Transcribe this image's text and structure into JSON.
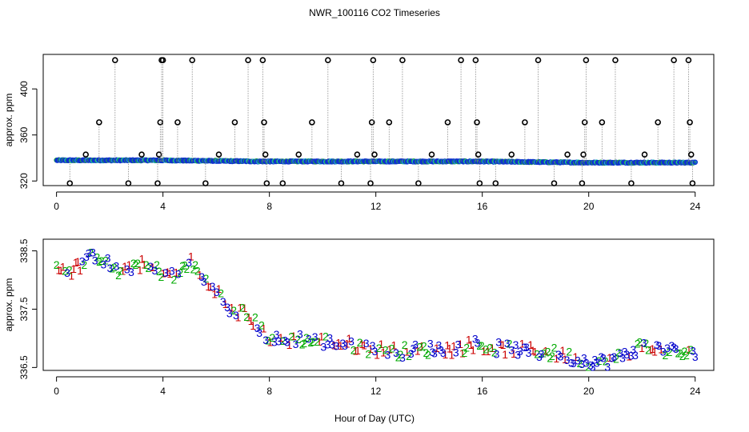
{
  "figure": {
    "title": "NWR_100116  CO2 Timeseries",
    "xlabel": "Hour of Day (UTC)"
  },
  "chart_data": [
    {
      "type": "scatter",
      "name": "top-panel",
      "ylabel": "approx. ppm",
      "xlim": [
        -0.5,
        24.7
      ],
      "ylim": [
        316,
        430
      ],
      "xticks": [
        0,
        4,
        8,
        12,
        16,
        20,
        24
      ],
      "yticks": [
        320,
        360,
        400
      ],
      "baseline_segments": [
        {
          "from": 0.0,
          "to": 3.9,
          "start": 338,
          "end": 338
        },
        {
          "from": 3.9,
          "to": 7.8,
          "start": 338,
          "end": 337
        },
        {
          "from": 7.8,
          "to": 11.9,
          "start": 337,
          "end": 337
        },
        {
          "from": 11.9,
          "to": 15.9,
          "start": 337,
          "end": 337
        },
        {
          "from": 15.9,
          "to": 19.9,
          "start": 337,
          "end": 336
        },
        {
          "from": 19.9,
          "to": 24.0,
          "start": 336,
          "end": 336
        }
      ],
      "flagged_points": [
        {
          "x": 0.5,
          "y": 318
        },
        {
          "x": 1.1,
          "y": 343
        },
        {
          "x": 1.6,
          "y": 371
        },
        {
          "x": 2.2,
          "y": 425
        },
        {
          "x": 2.7,
          "y": 318
        },
        {
          "x": 3.2,
          "y": 343
        },
        {
          "x": 3.8,
          "y": 318
        },
        {
          "x": 3.85,
          "y": 343
        },
        {
          "x": 3.9,
          "y": 371
        },
        {
          "x": 3.95,
          "y": 425
        },
        {
          "x": 4.0,
          "y": 425
        },
        {
          "x": 4.55,
          "y": 371
        },
        {
          "x": 5.1,
          "y": 425
        },
        {
          "x": 5.6,
          "y": 318
        },
        {
          "x": 6.1,
          "y": 343
        },
        {
          "x": 6.7,
          "y": 371
        },
        {
          "x": 7.2,
          "y": 425
        },
        {
          "x": 7.75,
          "y": 425
        },
        {
          "x": 7.8,
          "y": 371
        },
        {
          "x": 7.85,
          "y": 343
        },
        {
          "x": 7.9,
          "y": 318
        },
        {
          "x": 8.5,
          "y": 318
        },
        {
          "x": 9.1,
          "y": 343
        },
        {
          "x": 9.6,
          "y": 371
        },
        {
          "x": 10.2,
          "y": 425
        },
        {
          "x": 10.7,
          "y": 318
        },
        {
          "x": 11.3,
          "y": 343
        },
        {
          "x": 11.8,
          "y": 318
        },
        {
          "x": 11.85,
          "y": 371
        },
        {
          "x": 11.9,
          "y": 425
        },
        {
          "x": 11.95,
          "y": 343
        },
        {
          "x": 12.5,
          "y": 371
        },
        {
          "x": 13.0,
          "y": 425
        },
        {
          "x": 13.6,
          "y": 318
        },
        {
          "x": 14.1,
          "y": 343
        },
        {
          "x": 14.7,
          "y": 371
        },
        {
          "x": 15.2,
          "y": 425
        },
        {
          "x": 15.75,
          "y": 425
        },
        {
          "x": 15.8,
          "y": 371
        },
        {
          "x": 15.85,
          "y": 343
        },
        {
          "x": 15.9,
          "y": 318
        },
        {
          "x": 16.5,
          "y": 318
        },
        {
          "x": 17.1,
          "y": 343
        },
        {
          "x": 17.6,
          "y": 371
        },
        {
          "x": 18.1,
          "y": 425
        },
        {
          "x": 18.7,
          "y": 318
        },
        {
          "x": 19.2,
          "y": 343
        },
        {
          "x": 19.75,
          "y": 318
        },
        {
          "x": 19.8,
          "y": 343
        },
        {
          "x": 19.85,
          "y": 371
        },
        {
          "x": 19.9,
          "y": 425
        },
        {
          "x": 20.5,
          "y": 371
        },
        {
          "x": 21.0,
          "y": 425
        },
        {
          "x": 21.6,
          "y": 318
        },
        {
          "x": 22.1,
          "y": 343
        },
        {
          "x": 22.6,
          "y": 371
        },
        {
          "x": 23.2,
          "y": 425
        },
        {
          "x": 23.75,
          "y": 425
        },
        {
          "x": 23.8,
          "y": 371
        },
        {
          "x": 23.85,
          "y": 343
        },
        {
          "x": 23.9,
          "y": 318
        }
      ]
    },
    {
      "type": "scatter",
      "name": "bottom-panel",
      "ylabel": "approx. ppm",
      "xlim": [
        -0.5,
        24.7
      ],
      "ylim": [
        336.45,
        338.7
      ],
      "xticks": [
        0,
        4,
        8,
        12,
        16,
        20,
        24
      ],
      "yticks": [
        336.5,
        337.5,
        338.5
      ],
      "series": [
        {
          "name": "1",
          "color": "#cc0000"
        },
        {
          "name": "2",
          "color": "#00aa00"
        },
        {
          "name": "3",
          "color": "#0000cc"
        }
      ],
      "hourly_mean": [
        {
          "x": 0.0,
          "y": 338.28
        },
        {
          "x": 0.5,
          "y": 338.15
        },
        {
          "x": 1.0,
          "y": 338.3
        },
        {
          "x": 1.5,
          "y": 338.45
        },
        {
          "x": 2.0,
          "y": 338.25
        },
        {
          "x": 2.5,
          "y": 338.1
        },
        {
          "x": 3.0,
          "y": 338.3
        },
        {
          "x": 3.5,
          "y": 338.2
        },
        {
          "x": 4.0,
          "y": 338.15
        },
        {
          "x": 4.5,
          "y": 338.05
        },
        {
          "x": 5.0,
          "y": 338.35
        },
        {
          "x": 5.5,
          "y": 338.0
        },
        {
          "x": 6.0,
          "y": 337.85
        },
        {
          "x": 6.5,
          "y": 337.45
        },
        {
          "x": 7.0,
          "y": 337.45
        },
        {
          "x": 7.5,
          "y": 337.25
        },
        {
          "x": 8.0,
          "y": 337.0
        },
        {
          "x": 8.5,
          "y": 336.95
        },
        {
          "x": 9.0,
          "y": 337.0
        },
        {
          "x": 10.0,
          "y": 336.95
        },
        {
          "x": 11.0,
          "y": 336.9
        },
        {
          "x": 12.0,
          "y": 336.82
        },
        {
          "x": 13.0,
          "y": 336.78
        },
        {
          "x": 14.0,
          "y": 336.82
        },
        {
          "x": 15.0,
          "y": 336.82
        },
        {
          "x": 15.8,
          "y": 336.92
        },
        {
          "x": 16.0,
          "y": 336.85
        },
        {
          "x": 17.0,
          "y": 336.82
        },
        {
          "x": 18.0,
          "y": 336.78
        },
        {
          "x": 19.0,
          "y": 336.72
        },
        {
          "x": 20.0,
          "y": 336.6
        },
        {
          "x": 20.5,
          "y": 336.6
        },
        {
          "x": 21.0,
          "y": 336.65
        },
        {
          "x": 21.5,
          "y": 336.75
        },
        {
          "x": 22.0,
          "y": 336.88
        },
        {
          "x": 22.5,
          "y": 336.82
        },
        {
          "x": 23.0,
          "y": 336.8
        },
        {
          "x": 23.5,
          "y": 336.75
        },
        {
          "x": 23.8,
          "y": 336.72
        }
      ]
    }
  ]
}
